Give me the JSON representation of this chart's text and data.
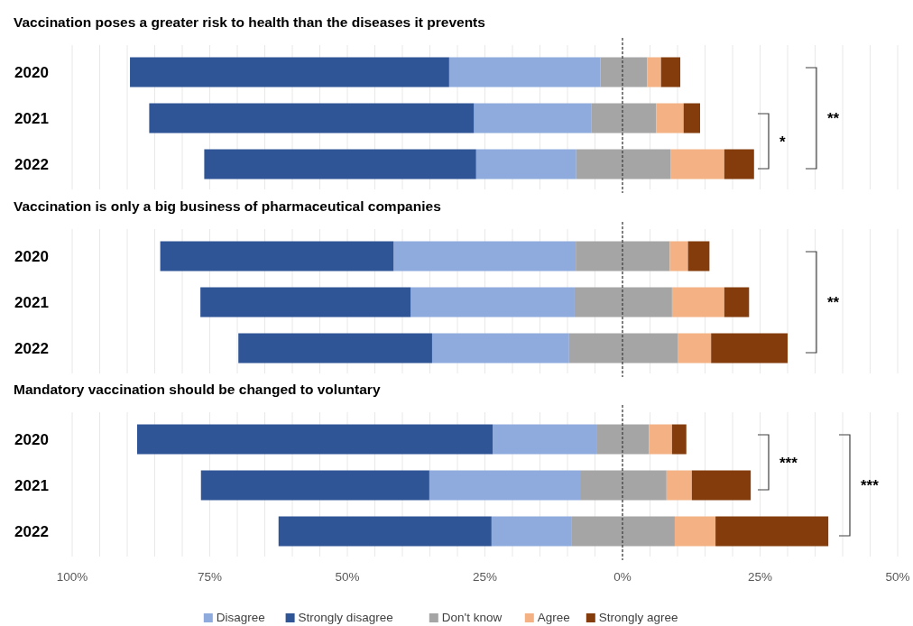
{
  "chart_data": [
    {
      "type": "bar",
      "orientation": "horizontal",
      "title": "Vaccination poses a greater risk to health than the diseases it prevents",
      "categories": [
        "2020",
        "2021",
        "2022"
      ],
      "series": [
        {
          "color": "#8faadc",
          "base": [
            -31.5,
            -27,
            -26.6
          ],
          "values": [
            27.5,
            21.3,
            18.2
          ]
        },
        {
          "color": "#2f5597",
          "base": [
            -89.5,
            -86,
            -76
          ],
          "values": [
            58,
            59,
            49.4
          ]
        },
        {
          "color": "#a5a5a5",
          "base": [
            -4,
            -5.7,
            -8.4
          ],
          "values": [
            8.5,
            11.8,
            17.1
          ]
        },
        {
          "color": "#f4b183",
          "base": [
            4.5,
            6.1,
            8.7
          ],
          "values": [
            2.5,
            5,
            9.8
          ]
        },
        {
          "color": "#843c0c",
          "base": [
            7,
            11.1,
            18.5
          ],
          "values": [
            3.5,
            3,
            5.4
          ]
        }
      ],
      "xlim": [
        -100,
        50
      ],
      "xticks": [
        -100,
        -95,
        -90,
        -85,
        -80,
        -75,
        -70,
        -65,
        -60,
        -55,
        -50,
        -45,
        -40,
        -35,
        -30,
        -25,
        -20,
        -15,
        -10,
        -5,
        0,
        5,
        10,
        15,
        20,
        25,
        30,
        35,
        40,
        45,
        50
      ],
      "tick_labels": "y",
      "grid": "x",
      "ref_lines": [
        {
          "axis": "x",
          "value": 0,
          "line_style": "dashed",
          "color": "#404040"
        }
      ],
      "annotations": [
        "*",
        "**"
      ]
    },
    {
      "type": "bar",
      "orientation": "horizontal",
      "title": "Vaccination is only a big business of pharmaceutical companies",
      "categories": [
        "2020",
        "2021",
        "2022"
      ],
      "series": [
        {
          "color": "#8faadc",
          "base": [
            -41.6,
            -38.5,
            -34.6
          ],
          "values": [
            33.1,
            29.8,
            24.9
          ]
        },
        {
          "color": "#2f5597",
          "base": [
            -84,
            -76.7,
            -69.8
          ],
          "values": [
            42.4,
            38.2,
            35.2
          ]
        },
        {
          "color": "#a5a5a5",
          "base": [
            -8.5,
            -8.7,
            -9.7
          ],
          "values": [
            17.1,
            17.7,
            19.7
          ]
        },
        {
          "color": "#f4b183",
          "base": [
            8.6,
            9,
            10
          ],
          "values": [
            3.3,
            9.5,
            6.1
          ]
        },
        {
          "color": "#843c0c",
          "base": [
            11.9,
            18.5,
            16.1
          ],
          "values": [
            3.9,
            4.5,
            13.9
          ]
        }
      ],
      "xlim": [
        -100,
        50
      ],
      "xticks": [
        -100,
        -95,
        -90,
        -85,
        -80,
        -75,
        -70,
        -65,
        -60,
        -55,
        -50,
        -45,
        -40,
        -35,
        -30,
        -25,
        -20,
        -15,
        -10,
        -5,
        0,
        5,
        10,
        15,
        20,
        25,
        30,
        35,
        40,
        45,
        50
      ],
      "tick_labels": "y",
      "grid": "x",
      "ref_lines": [
        {
          "axis": "x",
          "value": 0,
          "line_style": "dashed",
          "color": "#404040"
        }
      ],
      "annotations": [
        "**"
      ]
    },
    {
      "type": "bar",
      "orientation": "horizontal",
      "title": "Mandatory vaccination should be changed to voluntary",
      "categories": [
        "2020",
        "2021",
        "2022"
      ],
      "series": [
        {
          "name": "Disagree",
          "color": "#8faadc",
          "base": [
            -23.6,
            -35.1,
            -23.8
          ],
          "values": [
            19,
            27.4,
            14.6
          ]
        },
        {
          "name": "Strongly disagree",
          "color": "#2f5597",
          "base": [
            -88.2,
            -76.6,
            -62.5
          ],
          "values": [
            64.6,
            41.5,
            38.7
          ]
        },
        {
          "name": "Don't know",
          "color": "#a5a5a5",
          "base": [
            -4.6,
            -7.7,
            -9.2
          ],
          "values": [
            9.4,
            15.7,
            18.7
          ]
        },
        {
          "name": "Agree",
          "color": "#f4b183",
          "base": [
            4.8,
            8,
            9.5
          ],
          "values": [
            4.2,
            4.6,
            7.4
          ]
        },
        {
          "name": "Strongly agree",
          "color": "#843c0c",
          "base": [
            9,
            12.6,
            16.9
          ],
          "values": [
            2.6,
            10.7,
            20.5
          ]
        }
      ],
      "xlim": [
        -100,
        50
      ],
      "xticks": [
        {
          "value": -100,
          "label": "100%"
        },
        {
          "value": -95,
          "label": null
        },
        {
          "value": -90,
          "label": null
        },
        {
          "value": -85,
          "label": null
        },
        {
          "value": -80,
          "label": null
        },
        {
          "value": -75,
          "label": "75%"
        },
        {
          "value": -70,
          "label": null
        },
        {
          "value": -65,
          "label": null
        },
        {
          "value": -60,
          "label": null
        },
        {
          "value": -55,
          "label": null
        },
        {
          "value": -50,
          "label": "50%"
        },
        {
          "value": -45,
          "label": null
        },
        {
          "value": -40,
          "label": null
        },
        {
          "value": -35,
          "label": null
        },
        {
          "value": -30,
          "label": null
        },
        {
          "value": -25,
          "label": "25%"
        },
        {
          "value": -20,
          "label": null
        },
        {
          "value": -15,
          "label": null
        },
        {
          "value": -10,
          "label": null
        },
        {
          "value": -5,
          "label": null
        },
        {
          "value": 0,
          "label": "0%"
        },
        {
          "value": 5,
          "label": null
        },
        {
          "value": 10,
          "label": null
        },
        {
          "value": 15,
          "label": null
        },
        {
          "value": 20,
          "label": null
        },
        {
          "value": 25,
          "label": "25%"
        },
        {
          "value": 30,
          "label": null
        },
        {
          "value": 35,
          "label": null
        },
        {
          "value": 40,
          "label": null
        },
        {
          "value": 45,
          "label": null
        },
        {
          "value": 50,
          "label": "50%"
        }
      ],
      "grid": "x",
      "ref_lines": [
        {
          "axis": "x",
          "value": 0,
          "line_style": "dashed",
          "color": "#404040"
        }
      ],
      "annotations": [
        "***",
        "***"
      ],
      "legend": "bottom"
    }
  ]
}
